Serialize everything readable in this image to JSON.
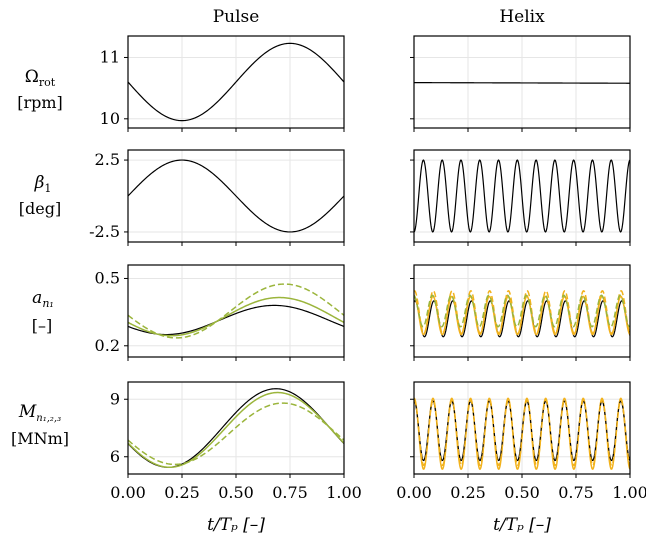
{
  "columns": [
    "Pulse",
    "Helix"
  ],
  "rows": [
    {
      "label_main": "Ω",
      "label_sub": "rot",
      "unit": "[rpm]"
    },
    {
      "label_main": "β",
      "label_sub": "1",
      "unit": "[deg]"
    },
    {
      "label_main": "a",
      "label_sub": "n₁",
      "unit": "[–]"
    },
    {
      "label_main": "M",
      "label_sub": "n₁,₂,₃",
      "unit": "[MNm]"
    }
  ],
  "xlabel": "t/Tₚ [–]",
  "colors": {
    "black": "#000000",
    "green": "#9bb53c",
    "orange": "#f2b21c"
  },
  "chart_data": [
    {
      "type": "line",
      "panel": "Pulse · Ω_rot",
      "xlim": [
        0,
        1
      ],
      "ylim": [
        9.85,
        11.35
      ],
      "yticks": [
        10,
        11
      ],
      "ytick_labels": [
        "10",
        "11"
      ],
      "xticks": [
        0,
        0.25,
        0.5,
        0.75,
        1
      ],
      "series": [
        {
          "style": "black-solid",
          "func": "sin",
          "offset": 10.6,
          "amp": 0.63,
          "cycles": 1,
          "phase": 3.14159
        }
      ]
    },
    {
      "type": "line",
      "panel": "Helix · Ω_rot",
      "xlim": [
        0,
        1
      ],
      "ylim": [
        9.85,
        11.35
      ],
      "yticks": [
        10,
        11
      ],
      "ytick_labels": [
        "",
        ""
      ],
      "xticks": [
        0,
        0.25,
        0.5,
        0.75,
        1
      ],
      "series": [
        {
          "style": "black-solid",
          "func": "line",
          "y0": 10.59,
          "y1": 10.58
        }
      ]
    },
    {
      "type": "line",
      "panel": "Pulse · β_1",
      "xlim": [
        0,
        1
      ],
      "ylim": [
        -3.2,
        3.2
      ],
      "yticks": [
        2.5,
        -2.5
      ],
      "ytick_labels": [
        "2.5",
        "-2.5"
      ],
      "xticks": [
        0,
        0.25,
        0.5,
        0.75,
        1
      ],
      "series": [
        {
          "style": "black-solid",
          "func": "sin",
          "offset": 0,
          "amp": 2.5,
          "cycles": 1,
          "phase": 0
        }
      ]
    },
    {
      "type": "line",
      "panel": "Helix · β_1",
      "xlim": [
        0,
        1
      ],
      "ylim": [
        -3.2,
        3.2
      ],
      "yticks": [
        2.5,
        -2.5
      ],
      "ytick_labels": [
        "",
        ""
      ],
      "xticks": [
        0,
        0.25,
        0.5,
        0.75,
        1
      ],
      "series": [
        {
          "style": "black-solid",
          "func": "sin",
          "offset": 0,
          "amp": 2.5,
          "cycles": 11.5,
          "phase": 4.71239
        }
      ]
    },
    {
      "type": "line",
      "panel": "Pulse · a_n1",
      "xlim": [
        0,
        1
      ],
      "ylim": [
        0.15,
        0.56
      ],
      "yticks": [
        0.5,
        0.2
      ],
      "ytick_labels": [
        "0.5",
        "0.2"
      ],
      "xticks": [
        0,
        0.25,
        0.5,
        0.75,
        1
      ],
      "series": [
        {
          "style": "black-solid",
          "func": "sin",
          "offset": 0.315,
          "amp": 0.065,
          "cycles": 1,
          "phase": 3.6
        },
        {
          "style": "green-solid",
          "func": "sin",
          "offset": 0.33,
          "amp": 0.085,
          "cycles": 1,
          "phase": 3.45
        },
        {
          "style": "green-dashed",
          "func": "sin",
          "offset": 0.355,
          "amp": 0.12,
          "cycles": 1,
          "phase": 3.3
        }
      ]
    },
    {
      "type": "line",
      "panel": "Helix · a_n1",
      "xlim": [
        0,
        1
      ],
      "ylim": [
        0.15,
        0.56
      ],
      "yticks": [
        0.5,
        0.2
      ],
      "ytick_labels": [
        "",
        ""
      ],
      "xticks": [
        0,
        0.25,
        0.5,
        0.75,
        1
      ],
      "series": [
        {
          "style": "black-solid",
          "func": "sin",
          "offset": 0.32,
          "amp": 0.08,
          "cycles": 11.5,
          "phase": 1.2
        },
        {
          "style": "orange-solid",
          "func": "sin",
          "offset": 0.335,
          "amp": 0.085,
          "cycles": 11.5,
          "phase": 1.5
        },
        {
          "style": "orange-dashed",
          "func": "sin",
          "offset": 0.35,
          "amp": 0.095,
          "cycles": 11.5,
          "phase": 1.4
        },
        {
          "style": "green-dashed",
          "func": "sin",
          "offset": 0.355,
          "amp": 0.07,
          "cycles": 11.5,
          "phase": 1.7
        }
      ]
    },
    {
      "type": "line",
      "panel": "Pulse · M_n1,2,3",
      "xlim": [
        0,
        1
      ],
      "ylim": [
        5.1,
        9.9
      ],
      "yticks": [
        9,
        6
      ],
      "ytick_labels": [
        "9",
        "6"
      ],
      "xticks": [
        0,
        0.25,
        0.5,
        0.75,
        1
      ],
      "xtick_labels": [
        "0.00",
        "0.25",
        "0.50",
        "0.75",
        "1.00"
      ],
      "series": [
        {
          "style": "black-solid",
          "func": "sin",
          "offset": 7.5,
          "amp": 2.05,
          "cycles": 1,
          "phase": 3.55
        },
        {
          "style": "green-solid",
          "func": "sin",
          "offset": 7.4,
          "amp": 1.95,
          "cycles": 1,
          "phase": 3.5
        },
        {
          "style": "green-dashed",
          "func": "sin",
          "offset": 7.2,
          "amp": 1.6,
          "cycles": 1,
          "phase": 3.35
        }
      ]
    },
    {
      "type": "line",
      "panel": "Helix · M_n1,2,3",
      "xlim": [
        0,
        1
      ],
      "ylim": [
        5.1,
        9.9
      ],
      "yticks": [
        9,
        6
      ],
      "ytick_labels": [
        "",
        ""
      ],
      "xticks": [
        0,
        0.25,
        0.5,
        0.75,
        1
      ],
      "xtick_labels": [
        "0.00",
        "0.25",
        "0.50",
        "0.75",
        "1.00"
      ],
      "series": [
        {
          "style": "orange-solid",
          "func": "sin",
          "offset": 7.2,
          "amp": 1.85,
          "cycles": 11.5,
          "phase": 1.5
        },
        {
          "style": "black-solid",
          "func": "sin",
          "offset": 7.35,
          "amp": 1.55,
          "cycles": 11.5,
          "phase": 1.5
        },
        {
          "style": "orange-dashed",
          "func": "sin",
          "offset": 7.25,
          "amp": 1.7,
          "cycles": 11.5,
          "phase": 1.45
        }
      ]
    }
  ]
}
